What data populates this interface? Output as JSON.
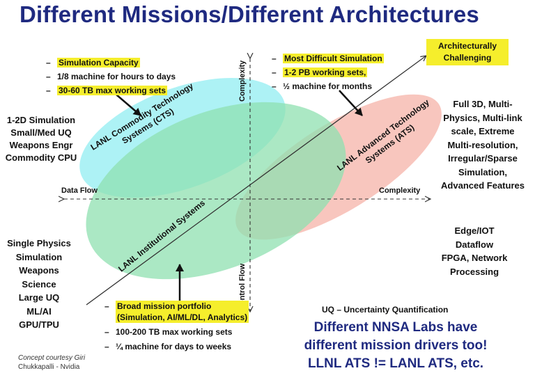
{
  "title": "Different Missions/Different Architectures",
  "corner_box": "Architecturally Challenging",
  "ellipses": {
    "cts": {
      "line1": "LANL Commodity Technology",
      "line2": "Systems (CTS)",
      "color": "#9ff0f3"
    },
    "institutional": {
      "label": "LANL Institutional Systems",
      "color": "#8fe0b0"
    },
    "ats": {
      "line1": "LANL Advanced Technology",
      "line2": "Systems (ATS)",
      "color": "#f7b9b0"
    }
  },
  "axes": {
    "complexity_top": "Complexity",
    "complexity_right": "Complexity",
    "data_flow": "Data Flow",
    "control_flow": "Control Flow"
  },
  "cts_notes": [
    {
      "text": "Simulation Capacity",
      "highlight": true
    },
    {
      "text": "1/8 machine for hours to days",
      "highlight": false
    },
    {
      "text": "30-60 TB max working sets",
      "highlight": true
    }
  ],
  "ats_notes": [
    {
      "text": "Most Difficult Simulation",
      "highlight": true
    },
    {
      "text": "1-2 PB working sets,",
      "highlight": true
    },
    {
      "text": "½ machine for months",
      "highlight": false
    }
  ],
  "inst_notes": {
    "first_line1": "Broad mission portfolio",
    "first_line2": "(Simulation, AI/ML/DL, Analytics)",
    "second": "100-200 TB max working sets",
    "third": "¼ machine for days to weeks"
  },
  "left_top_block": [
    "1-2D Simulation",
    "Small/Med UQ",
    "Weapons Engr",
    "Commodity CPU"
  ],
  "left_bottom_block": [
    "Single Physics",
    "Simulation",
    "Weapons Science",
    "Large UQ",
    "ML/AI",
    "GPU/TPU"
  ],
  "right_top_block": [
    "Full 3D, Multi-",
    "Physics, Multi-link",
    "scale,  Extreme",
    "Multi-resolution,",
    "Irregular/Sparse",
    "Simulation,",
    "Advanced Features"
  ],
  "right_bottom_block": [
    "Edge/IOT",
    "Dataflow",
    "FPGA, Network",
    "Processing"
  ],
  "uq_note": "UQ – Uncertainty Quantification",
  "bottom_message": [
    "Different NNSA Labs have",
    "different mission drivers too!",
    "LLNL ATS != LANL ATS, etc."
  ],
  "credit": {
    "line1": "Concept courtesy Giri",
    "line2": "Chukkapalli - Nvidia"
  }
}
